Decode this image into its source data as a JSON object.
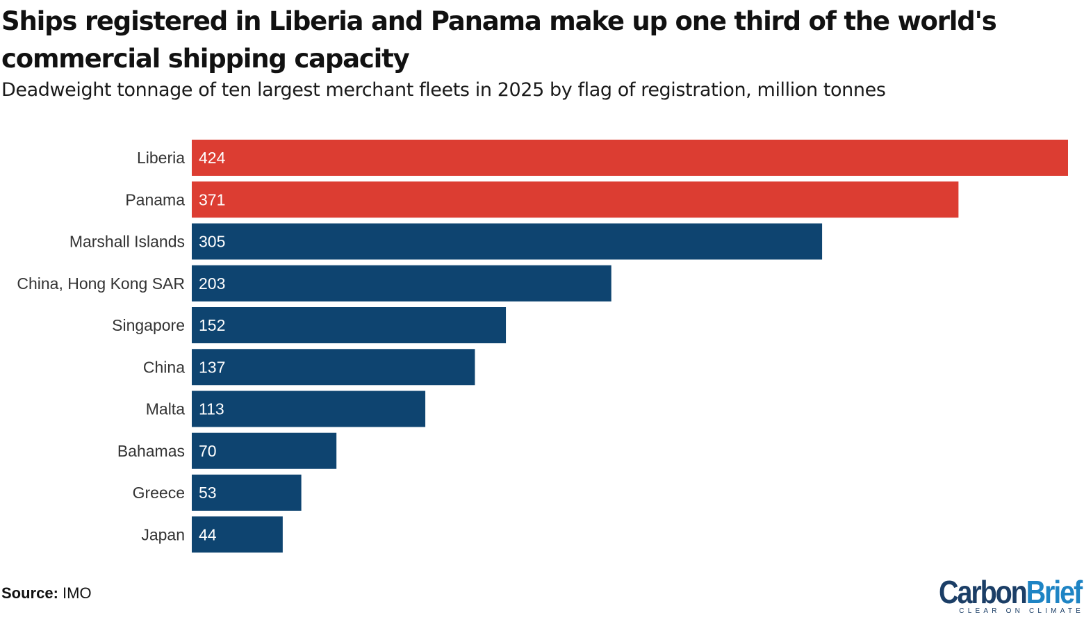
{
  "title": "Ships registered in Liberia and Panama make up one third of the world's commercial shipping capacity",
  "subtitle": "Deadweight tonnage of ten largest merchant fleets in 2025 by flag of registration, million tonnes",
  "source": {
    "label": "Source:",
    "text": "IMO"
  },
  "logo": {
    "word_part1": "Carbon",
    "word_part2": "Brief",
    "tagline": "CLEAR ON CLIMATE"
  },
  "colors": {
    "highlight": "#dc3d32",
    "default": "#0e4470",
    "logo_dark": "#1b3e66",
    "logo_light": "#1e84c4"
  },
  "chart_data": {
    "type": "bar",
    "orientation": "horizontal",
    "categories": [
      "Liberia",
      "Panama",
      "Marshall Islands",
      "China, Hong Kong SAR",
      "Singapore",
      "China",
      "Malta",
      "Bahamas",
      "Greece",
      "Japan"
    ],
    "values": [
      424,
      371,
      305,
      203,
      152,
      137,
      113,
      70,
      53,
      44
    ],
    "highlighted": [
      "Liberia",
      "Panama"
    ],
    "title": "Ships registered in Liberia and Panama make up one third of the world's commercial shipping capacity",
    "subtitle": "Deadweight tonnage of ten largest merchant fleets in 2025 by flag of registration, million tonnes",
    "xlim": [
      0,
      424
    ],
    "grid": false,
    "data_labels": "inside-left"
  }
}
